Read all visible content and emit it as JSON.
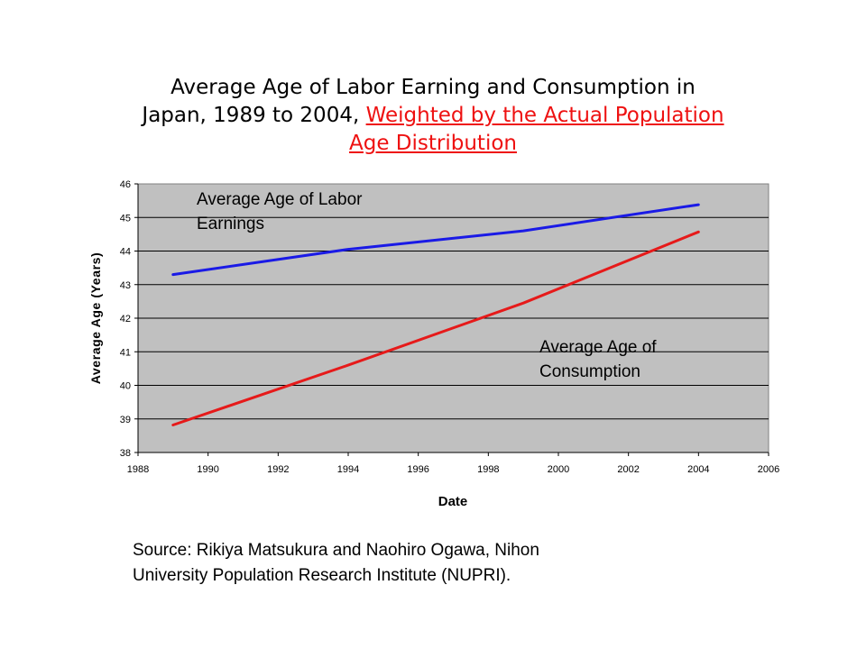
{
  "title": {
    "part1": "Average Age of Labor Earning and Consumption in Japan, 1989 to 2004,",
    "part2": "Weighted by the Actual Population Age Distribution"
  },
  "chart_data": {
    "type": "line",
    "xlabel": "Date",
    "ylabel": "Average Age (Years)",
    "xlim": [
      1988,
      2006
    ],
    "ylim": [
      38,
      46
    ],
    "xticks": [
      1988,
      1990,
      1992,
      1994,
      1996,
      1998,
      2000,
      2002,
      2004,
      2006
    ],
    "yticks": [
      38,
      39,
      40,
      41,
      42,
      43,
      44,
      45,
      46
    ],
    "grid": "horizontal",
    "background": "#c0c0c0",
    "series": [
      {
        "color": "#1a1ae6",
        "x": [
          1989,
          1994,
          1999,
          2004
        ],
        "y": [
          43.3,
          44.05,
          44.6,
          45.38
        ]
      },
      {
        "color": "#e61a1a",
        "x": [
          1989,
          1994,
          1999,
          2004
        ],
        "y": [
          38.82,
          40.6,
          42.45,
          44.57
        ]
      }
    ],
    "annotations": [
      {
        "line1": "Average Age of Labor",
        "line2": "Earnings"
      },
      {
        "line1": "Average Age of",
        "line2": "Consumption"
      }
    ]
  },
  "source": {
    "line1": "Source: Rikiya Matsukura and Naohiro Ogawa, Nihon",
    "line2": "University Population Research Institute (NUPRI)."
  }
}
